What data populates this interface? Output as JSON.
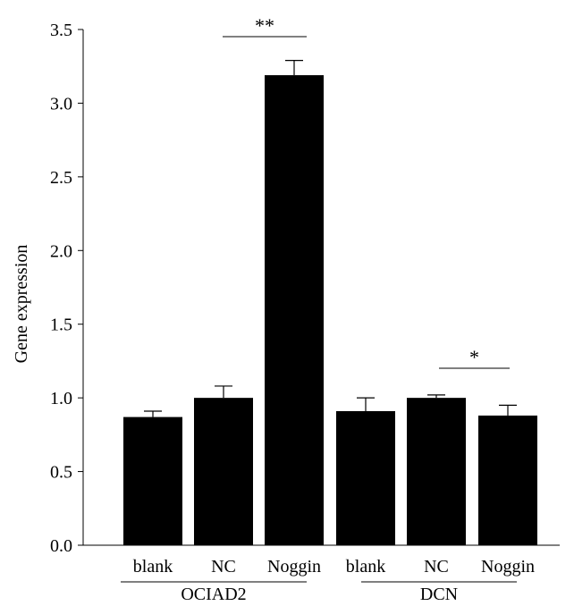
{
  "chart_data": {
    "type": "bar",
    "title": "",
    "xlabel": "",
    "ylabel": "Gene expression",
    "ylim": [
      0,
      3.5
    ],
    "yticks": [
      "0.0",
      "0.5",
      "1.0",
      "1.5",
      "2.0",
      "2.5",
      "3.0",
      "3.5"
    ],
    "grid": false,
    "legend": "none",
    "bar_color": "#000000",
    "categories": [
      "blank",
      "NC",
      "Noggin",
      "blank",
      "NC",
      "Noggin"
    ],
    "values": [
      0.87,
      1.0,
      3.19,
      0.91,
      1.0,
      0.88
    ],
    "errors": [
      0.04,
      0.08,
      0.1,
      0.09,
      0.02,
      0.07
    ],
    "groups": [
      {
        "label": "OCIAD2",
        "categories": [
          "blank",
          "NC",
          "Noggin"
        ]
      },
      {
        "label": "DCN",
        "categories": [
          "blank",
          "NC",
          "Noggin"
        ]
      }
    ],
    "significance": [
      {
        "text": "**",
        "from_bar": 1,
        "to_bar": 2
      },
      {
        "text": "*",
        "from_bar": 4,
        "to_bar": 5
      }
    ]
  }
}
